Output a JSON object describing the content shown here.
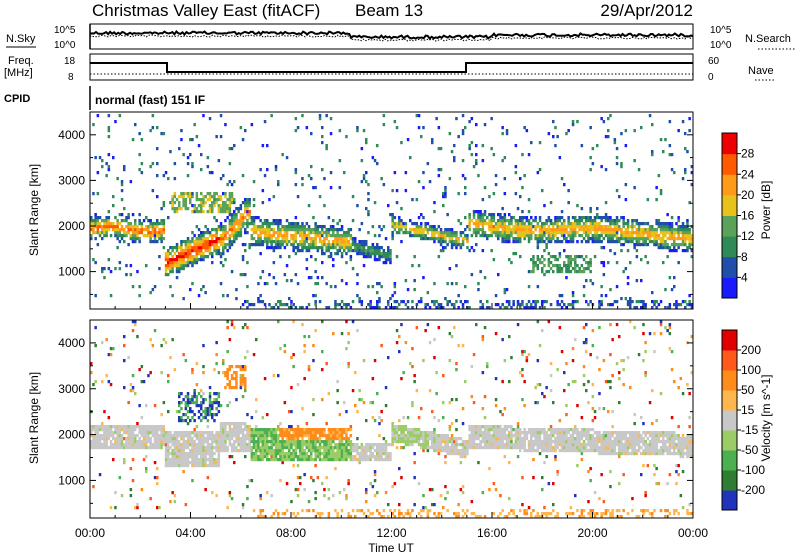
{
  "header": {
    "station": "Christmas Valley East (fitACF)",
    "beam": "Beam 13",
    "date": "29/Apr/2012"
  },
  "noise_panel": {
    "left_label": "N.Sky",
    "left_ticks": [
      "10^5",
      "10^0"
    ],
    "right_ticks": [
      "10^5",
      "10^0"
    ],
    "right_label": "N.Search"
  },
  "freq_panel": {
    "left_label_1": "Freq.",
    "left_label_2": "[MHz]",
    "left_ticks": [
      "18",
      "8"
    ],
    "right_ticks": [
      "60",
      "0"
    ],
    "right_label": "Nave"
  },
  "cpid": {
    "label": "CPID",
    "value": "normal (fast) 151 IF"
  },
  "chart_data": [
    {
      "type": "heatmap",
      "panel": "power",
      "xlabel": "Time UT",
      "ylabel": "Slant Range [km]",
      "x_ticks": [
        "00:00",
        "04:00",
        "08:00",
        "12:00",
        "16:00",
        "20:00",
        "00:00"
      ],
      "xlim_hours": [
        0,
        24
      ],
      "y_ticks": [
        1000,
        2000,
        3000,
        4000
      ],
      "ylim": [
        180,
        4500
      ],
      "colorbar_label": "Power [dB]",
      "colorbar_ticks": [
        4,
        8,
        12,
        16,
        20,
        24,
        28
      ],
      "colorbar_range": [
        0,
        32
      ],
      "colors": [
        "#1a1aff",
        "#1f4fa8",
        "#2e8b57",
        "#5aa25a",
        "#e8c21a",
        "#ff9a1a",
        "#ff5a00",
        "#ee0000"
      ]
    },
    {
      "type": "heatmap",
      "panel": "velocity",
      "xlabel": "Time UT",
      "ylabel": "Slant Range [km]",
      "x_ticks": [
        "00:00",
        "04:00",
        "08:00",
        "12:00",
        "16:00",
        "20:00",
        "00:00"
      ],
      "xlim_hours": [
        0,
        24
      ],
      "y_ticks": [
        1000,
        2000,
        3000,
        4000
      ],
      "ylim": [
        180,
        4500
      ],
      "colorbar_label": "Velocity [m s^-1]",
      "colorbar_ticks": [
        200,
        100,
        50,
        15,
        -15,
        -50,
        -100,
        -200
      ],
      "colorbar_range": [
        -250,
        250
      ],
      "colors": [
        "#2233bb",
        "#2e7d32",
        "#4caf50",
        "#9ccc65",
        "#c8c8c8",
        "#ffb74d",
        "#ff8c1a",
        "#ff5a1a",
        "#e00000"
      ]
    }
  ]
}
